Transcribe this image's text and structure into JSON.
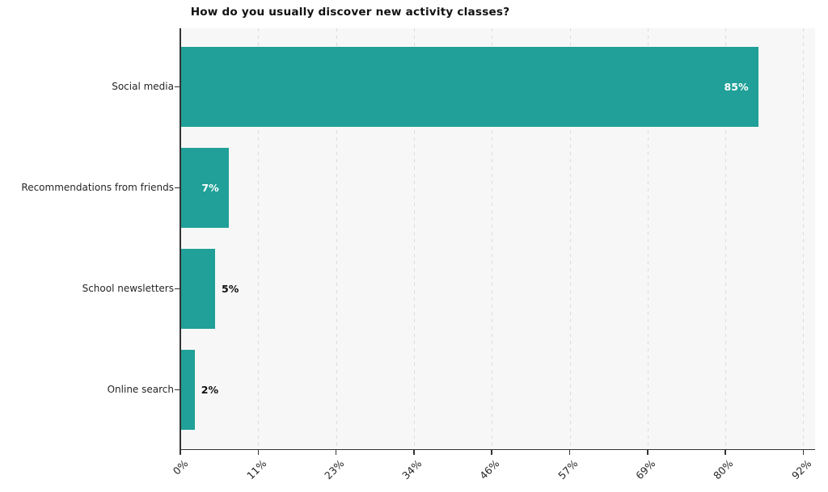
{
  "chart_data": {
    "type": "bar",
    "orientation": "horizontal",
    "title": "How do you usually discover new activity classes?",
    "categories": [
      "Social media",
      "Recommendations from friends",
      "School newsletters",
      "Online search"
    ],
    "values": [
      85,
      7,
      5,
      2
    ],
    "bar_labels": [
      "85%",
      "7%",
      "5%",
      "2%"
    ],
    "bar_label_placement": [
      "inside",
      "inside",
      "outside",
      "outside"
    ],
    "x_tick_labels": [
      "0%",
      "11%",
      "23%",
      "34%",
      "46%",
      "57%",
      "69%",
      "80%",
      "92%"
    ],
    "x_tick_values": [
      0,
      11.47,
      22.94,
      34.41,
      45.88,
      57.35,
      68.82,
      80.29,
      91.76
    ],
    "xlim": [
      0,
      93.5
    ],
    "xlabel": "",
    "ylabel": "",
    "grid": "vertical-dashed",
    "legend": "none",
    "colors": {
      "bar": "#20a098",
      "bar_label_inside": "#ffffff",
      "bar_label_outside": "#111111",
      "plot_background": "#f7f7f7",
      "figure_background": "#ffffff",
      "gridline": "#dcdcdc",
      "axis_line": "#333333",
      "tick_label": "#262626",
      "title": "#111111"
    }
  }
}
